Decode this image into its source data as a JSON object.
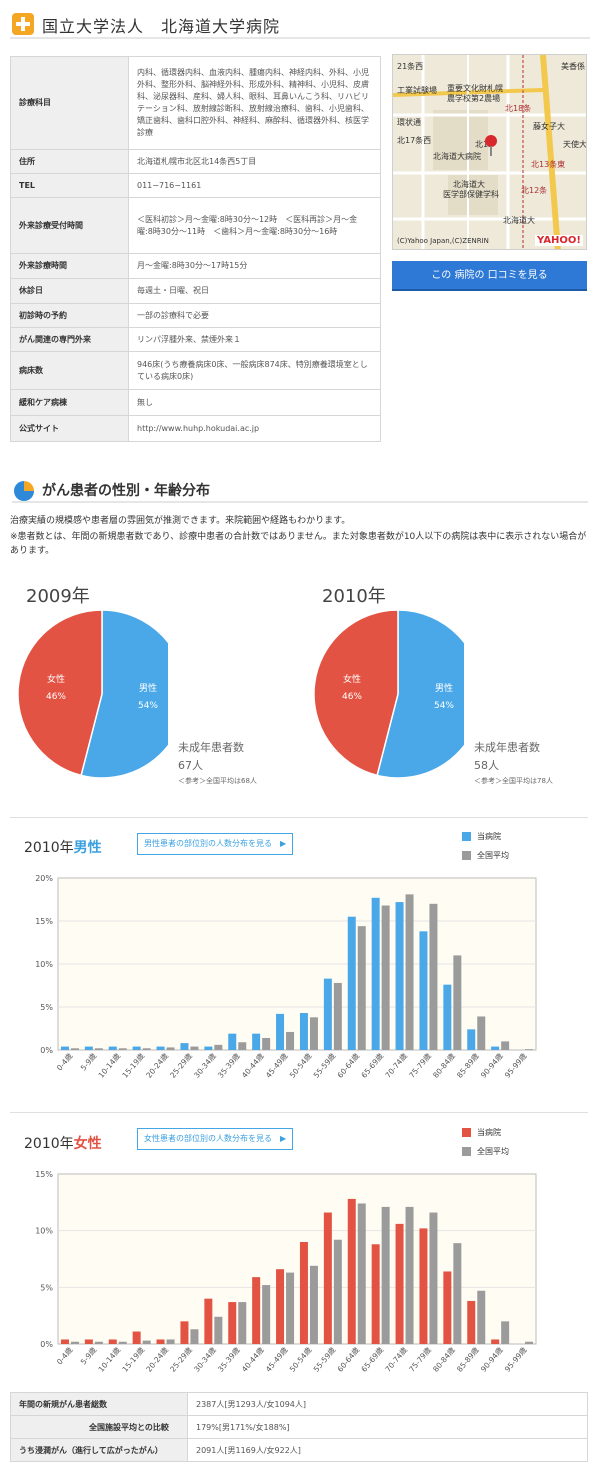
{
  "header": {
    "title": "国立大学法人　北海道大学病院",
    "icon": "cross-icon"
  },
  "info": [
    {
      "label": "診療科目",
      "value": "内科、循環器内科、血液内科、腫瘍内科、神経内科、外科、小児外科、整形外科、脳神経外科、形成外科、精神科、小児科、皮膚科、泌尿器科、産科、婦人科、眼科、耳鼻いんこう科、リハビリテーション科、放射線診断科、放射線治療科、歯科、小児歯科、矯正歯科、歯科口腔外科、神経科、麻酔科、循環器外科、核医学診療"
    },
    {
      "label": "住所",
      "value": "北海道札幌市北区北14条西5丁目"
    },
    {
      "label": "TEL",
      "value": "011−716−1161"
    },
    {
      "label": "外来診療受付時間",
      "value": "＜医科初診＞月〜金曜:8時30分〜12時　＜医科再診＞月〜金曜:8時30分〜11時　＜歯科＞月〜金曜:8時30分〜16時"
    },
    {
      "label": "外来診療時間",
      "value": "月〜金曜:8時30分〜17時15分"
    },
    {
      "label": "休診日",
      "value": "毎週土・日曜、祝日"
    },
    {
      "label": "初診時の予約",
      "value": "一部の診療科で必要"
    },
    {
      "label": "がん関連の専門外来",
      "value": "リンパ浮腫外来、禁煙外来１"
    },
    {
      "label": "病床数",
      "value": "946床(うち療養病床0床、一般病床874床、特別療養環境室としている病床0床)"
    },
    {
      "label": "緩和ケア病棟",
      "value": "無し"
    },
    {
      "label": "公式サイト",
      "value": "http://www.huhp.hokudai.ac.jp"
    }
  ],
  "map": {
    "labels": [
      "21条西",
      "工業試験場",
      "重要文化財札幌",
      "農学校第2農場",
      "北18条",
      "藤女子大",
      "北17条西",
      "北15",
      "北海道大病院",
      "北13条東",
      "天使大",
      "北海道大",
      "医学部保健学科",
      "北12条",
      "環状通",
      "美香係",
      "北海道大",
      "(C)Yahoo Japan,(C)ZENRIN",
      "YAHOO!"
    ],
    "copyright": "(C)Yahoo Japan,(C)ZENRIN",
    "logo": "YAHOO!"
  },
  "review_button": "この 病院の 口コミを見る",
  "section": {
    "title": "がん患者の性別・年齢分布",
    "icon": "pie-chart-icon",
    "desc1": "治療実績の規模感や患者層の雰囲気が推測できます。来院範囲や経路もわかります。",
    "desc2": "※患者数とは、年間の新規患者数であり、診療中患者の合計数ではありません。また対象患者数が10人以下の病院は表中に表示されない場合があります。"
  },
  "pies": [
    {
      "year": "2009年",
      "female_label": "女性",
      "female_pct": "46%",
      "male_label": "男性",
      "male_pct": "54%",
      "minor_title": "未成年患者数",
      "minor_count": "67人",
      "minor_ref": "＜参考＞全国平均は68人"
    },
    {
      "year": "2010年",
      "female_label": "女性",
      "female_pct": "46%",
      "male_label": "男性",
      "male_pct": "54%",
      "minor_title": "未成年患者数",
      "minor_count": "58人",
      "minor_ref": "＜参考＞全国平均は78人"
    }
  ],
  "male_chart": {
    "year": "2010年",
    "sex": "男性",
    "link": "男性患者の部位別の人数分布を見る　▶",
    "legend_hospital": "当病院",
    "legend_national": "全国平均",
    "color_hospital": "#4aa8e8",
    "color_national": "#9b9b9b"
  },
  "female_chart": {
    "year": "2010年",
    "sex": "女性",
    "link": "女性患者の部位別の人数分布を見る　▶",
    "legend_hospital": "当病院",
    "legend_national": "全国平均",
    "color_hospital": "#e35343",
    "color_national": "#9b9b9b"
  },
  "chart_data": [
    {
      "type": "pie",
      "title": "2009年",
      "categories": [
        "女性",
        "男性"
      ],
      "values": [
        46,
        54
      ],
      "colors": [
        "#e35343",
        "#4aa8e8"
      ]
    },
    {
      "type": "pie",
      "title": "2010年",
      "categories": [
        "女性",
        "男性"
      ],
      "values": [
        46,
        54
      ],
      "colors": [
        "#e35343",
        "#4aa8e8"
      ]
    },
    {
      "type": "bar",
      "title": "2010年 男性",
      "categories": [
        "0-4歳",
        "5-9歳",
        "10-14歳",
        "15-19歳",
        "20-24歳",
        "25-29歳",
        "30-34歳",
        "35-39歳",
        "40-44歳",
        "45-49歳",
        "50-54歳",
        "55-59歳",
        "60-64歳",
        "65-69歳",
        "70-74歳",
        "75-79歳",
        "80-84歳",
        "85-89歳",
        "90-94歳",
        "95-99歳"
      ],
      "ylim": [
        0,
        20
      ],
      "yticks": [
        "0%",
        "5%",
        "10%",
        "15%",
        "20%"
      ],
      "grid": true,
      "legend": "top-right",
      "series": [
        {
          "name": "当病院",
          "values": [
            0.4,
            0.4,
            0.4,
            0.4,
            0.4,
            0.8,
            0.4,
            1.9,
            1.9,
            4.2,
            4.3,
            8.3,
            15.5,
            17.7,
            17.2,
            13.8,
            7.6,
            2.4,
            0.4,
            0
          ]
        },
        {
          "name": "全国平均",
          "values": [
            0.2,
            0.2,
            0.2,
            0.2,
            0.3,
            0.4,
            0.6,
            0.9,
            1.4,
            2.1,
            3.8,
            7.8,
            14.4,
            16.8,
            18.1,
            17.0,
            11.0,
            3.9,
            1.0,
            0.1
          ]
        }
      ]
    },
    {
      "type": "bar",
      "title": "2010年 女性",
      "categories": [
        "0-4歳",
        "5-9歳",
        "10-14歳",
        "15-19歳",
        "20-24歳",
        "25-29歳",
        "30-34歳",
        "35-39歳",
        "40-44歳",
        "45-49歳",
        "50-54歳",
        "55-59歳",
        "60-64歳",
        "65-69歳",
        "70-74歳",
        "75-79歳",
        "80-84歳",
        "85-89歳",
        "90-94歳",
        "95-99歳"
      ],
      "ylim": [
        0,
        15
      ],
      "yticks": [
        "0%",
        "5%",
        "10%",
        "15%"
      ],
      "grid": true,
      "legend": "top-right",
      "series": [
        {
          "name": "当病院",
          "values": [
            0.4,
            0.4,
            0.4,
            1.1,
            0.4,
            2.0,
            4.0,
            3.7,
            5.9,
            6.6,
            9.0,
            11.6,
            12.8,
            8.8,
            10.6,
            10.2,
            6.4,
            3.8,
            0.4,
            0
          ]
        },
        {
          "name": "全国平均",
          "values": [
            0.2,
            0.2,
            0.2,
            0.3,
            0.4,
            1.3,
            2.4,
            3.7,
            5.2,
            6.3,
            6.9,
            9.2,
            12.4,
            12.1,
            12.1,
            11.6,
            8.9,
            4.7,
            2.0,
            0.2
          ]
        }
      ]
    }
  ],
  "summary": [
    {
      "label": "年間の新規がん患者総数",
      "value": "2387人[男1293人/女1094人]"
    },
    {
      "label": "全国施設平均との比較",
      "value": "179%[男171%/女188%]"
    },
    {
      "label": "うち浸潤がん（進行して広がったがん）",
      "value": "2091人[男1169人/女922人]"
    }
  ]
}
